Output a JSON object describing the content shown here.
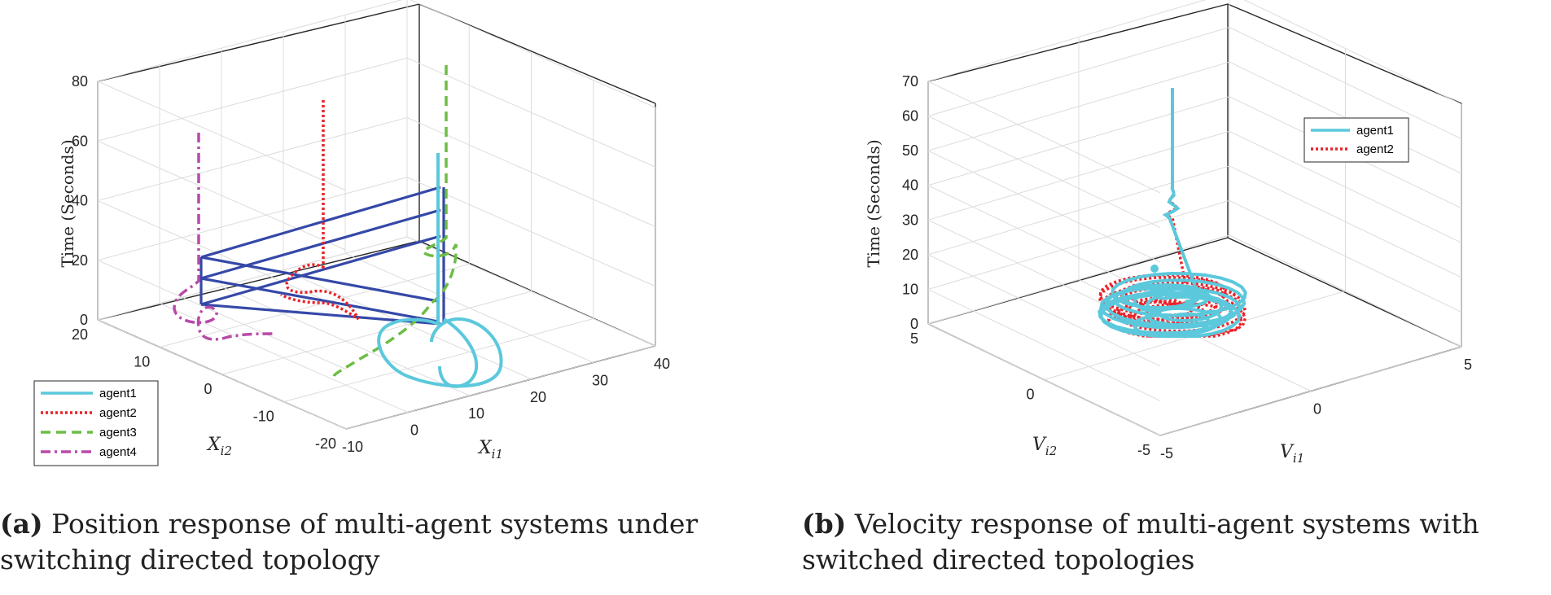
{
  "chart_data": [
    {
      "type": "line3d",
      "id": "a",
      "caption_tag": "(a)",
      "caption_text": "Position response of multi-agent systems under switching directed topology",
      "zlabel": "Time (Seconds)",
      "xlabel": "X",
      "xlabel_sub": "i1",
      "ylabel": "X",
      "ylabel_sub": "i2",
      "xlim": [
        -10,
        40
      ],
      "ylim": [
        -20,
        20
      ],
      "zlim": [
        0,
        80
      ],
      "xticks": [
        "-10",
        "0",
        "10",
        "20",
        "30",
        "40"
      ],
      "yticks": [
        "20",
        "10",
        "0",
        "-10",
        "-20"
      ],
      "zticks": [
        "0",
        "20",
        "40",
        "60",
        "80"
      ],
      "legend": [
        {
          "label": "agent1",
          "color": "#5bc8dc",
          "style": "solid"
        },
        {
          "label": "agent2",
          "color": "#e8232a",
          "style": "dotted"
        },
        {
          "label": "agent3",
          "color": "#6dbd45",
          "style": "dashed"
        },
        {
          "label": "agent4",
          "color": "#b84aa8",
          "style": "dashdot"
        }
      ],
      "topology_color": "#3548a8"
    },
    {
      "type": "line3d",
      "id": "b",
      "caption_tag": "(b)",
      "caption_text": "Velocity response of multi-agent systems with switched directed topologies",
      "zlabel": "Time (Seconds)",
      "xlabel": "V",
      "xlabel_sub": "i1",
      "ylabel": "V",
      "ylabel_sub": "i2",
      "xlim": [
        -5,
        5
      ],
      "ylim": [
        -5,
        5
      ],
      "zlim": [
        0,
        70
      ],
      "xticks": [
        "-5",
        "0",
        "5"
      ],
      "yticks": [
        "5",
        "0",
        "-5"
      ],
      "zticks": [
        "0",
        "10",
        "20",
        "30",
        "40",
        "50",
        "60",
        "70"
      ],
      "legend": [
        {
          "label": "agent1",
          "color": "#5bc8dc",
          "style": "solid"
        },
        {
          "label": "agent2",
          "color": "#e8232a",
          "style": "dotted"
        }
      ]
    }
  ],
  "captions": {
    "a": {
      "tag": "(a)",
      "line1": "Position response of multi-agent systems under",
      "line2": "switching directed topology"
    },
    "b": {
      "tag": "(b)",
      "line1": "Velocity response of multi-agent systems with",
      "line2": "switched directed topologies"
    }
  }
}
